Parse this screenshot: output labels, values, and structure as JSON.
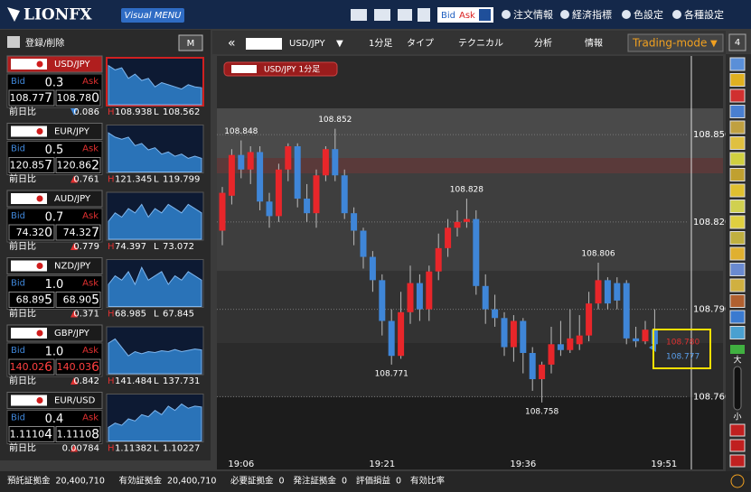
{
  "header": {
    "logo": "LIONFX",
    "menu": "Visual MENU",
    "bid": "Bid",
    "ask": "Ask",
    "items": [
      "注文情報",
      "経済指標",
      "色設定",
      "各種設定"
    ]
  },
  "panel": {
    "register": "登録/削除",
    "m_button": "M",
    "labels": {
      "bid": "Bid",
      "ask": "Ask",
      "change": "前日比",
      "high": "H",
      "low": "L"
    },
    "pairs": [
      {
        "name": "USD/JPY",
        "spread": "0.3",
        "bid": "108.777",
        "ask": "108.780",
        "change": "0.086",
        "direction": "down",
        "high": "108.938",
        "low": "108.562",
        "active": true,
        "spark": [
          9,
          8,
          8.5,
          6,
          7,
          5.5,
          6,
          4,
          5,
          4.5,
          4,
          3.5,
          4.5,
          4,
          3.8
        ]
      },
      {
        "name": "EUR/JPY",
        "spread": "0.5",
        "bid": "120.857",
        "ask": "120.862",
        "change": "0.761",
        "direction": "up",
        "high": "121.345",
        "low": "119.799",
        "active": false,
        "spark": [
          9,
          8,
          7.5,
          8,
          6,
          6.5,
          5,
          5.5,
          4,
          4.5,
          3.5,
          4,
          3,
          3.5,
          3
        ]
      },
      {
        "name": "AUD/JPY",
        "spread": "0.7",
        "bid": "74.320",
        "ask": "74.327",
        "change": "0.779",
        "direction": "up",
        "high": "74.397",
        "low": "73.072",
        "active": false,
        "spark": [
          4,
          6,
          5,
          7,
          6,
          8,
          5,
          7,
          6,
          8,
          7,
          6,
          8,
          7,
          6
        ]
      },
      {
        "name": "NZD/JPY",
        "spread": "1.0",
        "bid": "68.895",
        "ask": "68.905",
        "change": "0.371",
        "direction": "up",
        "high": "68.985",
        "low": "67.845",
        "active": false,
        "spark": [
          5,
          7,
          6,
          8,
          5,
          9,
          6,
          7,
          8,
          5,
          7,
          6,
          8,
          7,
          6
        ]
      },
      {
        "name": "GBP/JPY",
        "spread": "1.0",
        "bid": "140.026",
        "ask": "140.036",
        "change": "0.842",
        "direction": "up",
        "high": "141.484",
        "low": "137.731",
        "active": false,
        "spark": [
          7,
          8,
          6,
          4,
          5,
          4.5,
          5,
          4.8,
          5.2,
          5,
          5.5,
          5,
          5.3,
          5.6,
          5.4
        ]
      },
      {
        "name": "EUR/USD",
        "spread": "0.4",
        "bid": "1.11104",
        "ask": "1.11108",
        "change": "0.00784",
        "direction": "up",
        "high": "1.11382",
        "low": "1.10227",
        "active": false,
        "spark": [
          3,
          4,
          3.5,
          5,
          4.5,
          6,
          5.5,
          7,
          6,
          8,
          7,
          8.5,
          7.5,
          8,
          7.8
        ]
      }
    ]
  },
  "toolbar": {
    "symbol": "USD/JPY",
    "timeframe": "1分足",
    "type": "タイプ",
    "technical": "テクニカル",
    "analysis": "分析",
    "info": "情報",
    "mode": "Trading-mode"
  },
  "side_toolbar": {
    "count": "4",
    "large": "大",
    "small": "小"
  },
  "chart_data": {
    "type": "candlestick",
    "label": "USD/JPY 1分足",
    "up_color": "#e8262a",
    "down_color": "#3f86d8",
    "candles": [
      [
        108.817,
        108.832,
        108.812,
        108.83
      ],
      [
        108.829,
        108.845,
        108.826,
        108.843
      ],
      [
        108.843,
        108.848,
        108.835,
        108.838
      ],
      [
        108.838,
        108.846,
        108.833,
        108.844
      ],
      [
        108.844,
        108.846,
        108.824,
        108.827
      ],
      [
        108.827,
        108.83,
        108.818,
        108.822
      ],
      [
        108.822,
        108.84,
        108.82,
        108.838
      ],
      [
        108.838,
        108.847,
        108.834,
        108.846
      ],
      [
        108.846,
        108.847,
        108.825,
        108.828
      ],
      [
        108.828,
        108.833,
        108.82,
        108.823
      ],
      [
        108.823,
        108.838,
        108.818,
        108.836
      ],
      [
        108.836,
        108.846,
        108.834,
        108.845
      ],
      [
        108.845,
        108.852,
        108.834,
        108.836
      ],
      [
        108.836,
        108.838,
        108.821,
        108.823
      ],
      [
        108.823,
        108.825,
        108.812,
        108.817
      ],
      [
        108.817,
        108.818,
        108.804,
        108.808
      ],
      [
        108.808,
        108.81,
        108.796,
        108.8
      ],
      [
        108.8,
        108.802,
        108.781,
        108.786
      ],
      [
        108.786,
        108.79,
        108.771,
        108.774
      ],
      [
        108.774,
        108.796,
        108.773,
        108.789
      ],
      [
        108.789,
        108.805,
        108.785,
        108.799
      ],
      [
        108.799,
        108.802,
        108.786,
        108.79
      ],
      [
        108.79,
        108.805,
        108.786,
        108.803
      ],
      [
        108.803,
        108.816,
        108.8,
        108.811
      ],
      [
        108.811,
        108.821,
        108.808,
        108.818
      ],
      [
        108.818,
        108.824,
        108.815,
        108.82
      ],
      [
        108.82,
        108.828,
        108.818,
        108.821
      ],
      [
        108.821,
        108.824,
        108.795,
        108.798
      ],
      [
        108.798,
        108.802,
        108.785,
        108.79
      ],
      [
        108.79,
        108.795,
        108.784,
        108.787
      ],
      [
        108.787,
        108.789,
        108.774,
        108.777
      ],
      [
        108.777,
        108.788,
        108.772,
        108.786
      ],
      [
        108.786,
        108.787,
        108.768,
        108.775
      ],
      [
        108.775,
        108.777,
        108.762,
        108.766
      ],
      [
        108.766,
        108.772,
        108.758,
        108.771
      ],
      [
        108.771,
        108.784,
        108.768,
        108.778
      ],
      [
        108.778,
        108.786,
        108.774,
        108.776
      ],
      [
        108.776,
        108.79,
        108.775,
        108.78
      ],
      [
        108.778,
        108.788,
        108.776,
        108.781
      ],
      [
        108.781,
        108.796,
        108.779,
        108.792
      ],
      [
        108.792,
        108.806,
        108.79,
        108.8
      ],
      [
        108.8,
        108.801,
        108.79,
        108.792
      ],
      [
        108.799,
        108.801,
        108.79,
        108.793
      ],
      [
        108.799,
        108.8,
        108.778,
        108.78
      ],
      [
        108.78,
        108.784,
        108.777,
        108.779
      ],
      [
        108.779,
        108.786,
        108.778,
        108.783
      ],
      [
        108.783,
        108.79,
        108.776,
        108.778
      ]
    ],
    "ylim": [
      108.735,
      108.877
    ],
    "yticks": [
      {
        "value": 108.85,
        "label": "108.850"
      },
      {
        "value": 108.82,
        "label": "108.820"
      },
      {
        "value": 108.79,
        "label": "108.790"
      },
      {
        "value": 108.76,
        "label": "108.760"
      }
    ],
    "xticks": [
      "19:06",
      "19:21",
      "19:36",
      "19:51"
    ],
    "annotations": [
      108.848,
      108.852,
      108.828,
      108.806,
      108.771,
      108.758
    ],
    "current": {
      "ask": "108.780",
      "bid": "108.777"
    }
  },
  "status": [
    {
      "label": "預託証拠金",
      "value": "20,400,710"
    },
    {
      "label": "有効証拠金",
      "value": "20,400,710"
    },
    {
      "label": "必要証拠金",
      "value": "0"
    },
    {
      "label": "発注証拠金",
      "value": "0"
    },
    {
      "label": "評価損益",
      "value": "0"
    },
    {
      "label": "有効比率"
    }
  ]
}
